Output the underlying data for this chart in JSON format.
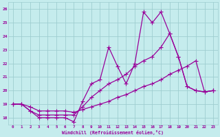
{
  "xlabel": "Windchill (Refroidissement éolien,°C)",
  "bg_color": "#c5eced",
  "grid_color": "#9ecdd0",
  "line_color": "#990099",
  "xlim": [
    -0.5,
    23.5
  ],
  "ylim": [
    17.5,
    26.5
  ],
  "xticks": [
    0,
    1,
    2,
    3,
    4,
    5,
    6,
    7,
    8,
    9,
    10,
    11,
    12,
    13,
    14,
    15,
    16,
    17,
    18,
    19,
    20,
    21,
    22,
    23
  ],
  "yticks": [
    18,
    19,
    20,
    21,
    22,
    23,
    24,
    25,
    26
  ],
  "line1_x": [
    0,
    1,
    2,
    3,
    4,
    5,
    6,
    7,
    8,
    9,
    10,
    11,
    12,
    13,
    14,
    15,
    16,
    17,
    18,
    19,
    20,
    21,
    22,
    23
  ],
  "line1_y": [
    19.0,
    19.0,
    18.5,
    18.0,
    18.0,
    18.0,
    18.0,
    17.7,
    19.2,
    20.5,
    20.8,
    23.2,
    21.8,
    20.5,
    22.0,
    25.8,
    25.0,
    25.8,
    24.2,
    22.5,
    20.3,
    20.0,
    19.9,
    20.0
  ],
  "line2_x": [
    0,
    1,
    2,
    3,
    4,
    5,
    6,
    7,
    8,
    9,
    10,
    11,
    12,
    13,
    14,
    15,
    16,
    17,
    18,
    19,
    20,
    21,
    22,
    23
  ],
  "line2_y": [
    19.0,
    19.0,
    18.5,
    18.2,
    18.2,
    18.2,
    18.2,
    18.2,
    18.8,
    19.5,
    20.0,
    20.5,
    20.8,
    21.2,
    21.8,
    22.2,
    22.5,
    23.2,
    24.2,
    22.5,
    20.3,
    20.0,
    19.9,
    20.0
  ],
  "line3_x": [
    0,
    1,
    2,
    3,
    4,
    5,
    6,
    7,
    8,
    9,
    10,
    11,
    12,
    13,
    14,
    15,
    16,
    17,
    18,
    19,
    20,
    21,
    22,
    23
  ],
  "line3_y": [
    19.0,
    19.0,
    18.8,
    18.5,
    18.5,
    18.5,
    18.5,
    18.4,
    18.6,
    18.8,
    19.0,
    19.2,
    19.5,
    19.7,
    20.0,
    20.3,
    20.5,
    20.8,
    21.2,
    21.5,
    21.8,
    22.2,
    19.9,
    20.0
  ]
}
